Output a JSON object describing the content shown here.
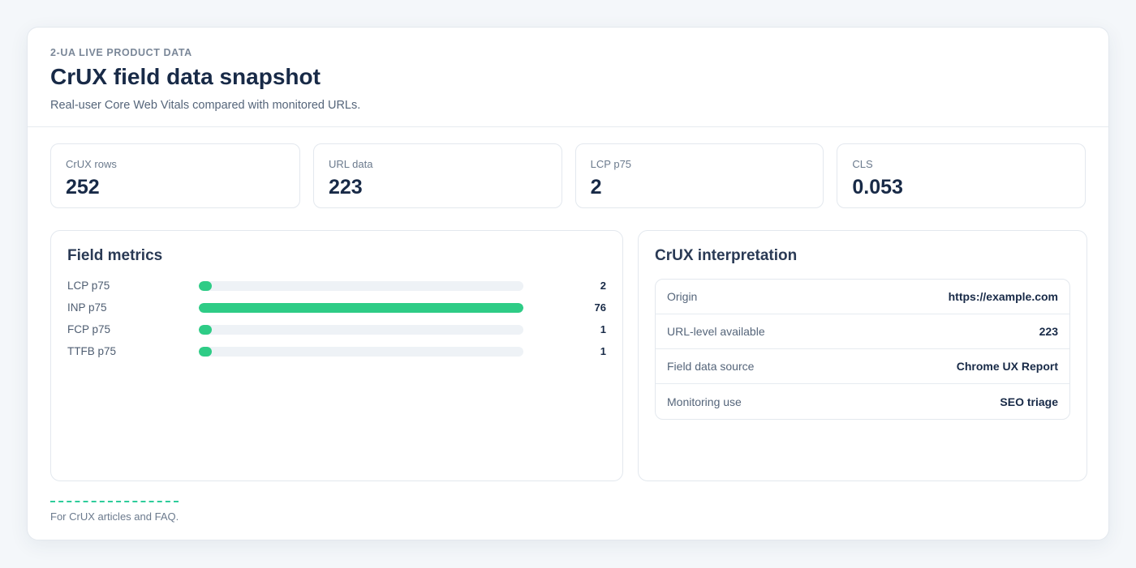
{
  "header": {
    "eyebrow": "2-UA LIVE PRODUCT DATA",
    "title": "CrUX field data snapshot",
    "subtitle": "Real-user Core Web Vitals compared with monitored URLs."
  },
  "stats": [
    {
      "label": "CrUX rows",
      "value": "252"
    },
    {
      "label": "URL data",
      "value": "223"
    },
    {
      "label": "LCP p75",
      "value": "2"
    },
    {
      "label": "CLS",
      "value": "0.053"
    }
  ],
  "field_metrics": {
    "title": "Field metrics",
    "max": 76,
    "rows": [
      {
        "label": "LCP p75",
        "value": 2
      },
      {
        "label": "INP p75",
        "value": 76
      },
      {
        "label": "FCP p75",
        "value": 1
      },
      {
        "label": "TTFB p75",
        "value": 1
      }
    ]
  },
  "interpretation": {
    "title": "CrUX interpretation",
    "rows": [
      {
        "key": "Origin",
        "value": "https://example.com"
      },
      {
        "key": "URL-level available",
        "value": "223"
      },
      {
        "key": "Field data source",
        "value": "Chrome UX Report"
      },
      {
        "key": "Monitoring use",
        "value": "SEO triage"
      }
    ]
  },
  "footer": {
    "text": "For CrUX articles and FAQ."
  },
  "colors": {
    "accent": "#2ecc86",
    "track": "#eef2f6"
  }
}
